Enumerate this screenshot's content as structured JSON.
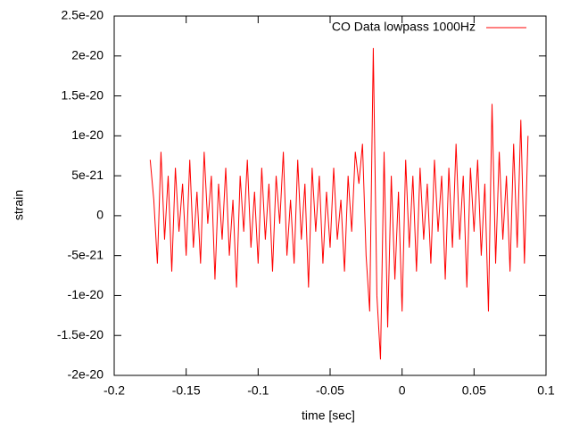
{
  "chart_data": {
    "type": "line",
    "x_label": "time [sec]",
    "y_label": "strain",
    "xlim": [
      -0.2,
      0.1
    ],
    "xticks": [
      -0.2,
      -0.15,
      -0.1,
      -0.05,
      0,
      0.05,
      0.1
    ],
    "ylim": [
      -2e-20,
      2.5e-20
    ],
    "yticks": [
      {
        "value": -2e-20,
        "label": "-2e-20"
      },
      {
        "value": -1.5e-20,
        "label": "-1.5e-20"
      },
      {
        "value": -1e-20,
        "label": "-1e-20"
      },
      {
        "value": -5e-21,
        "label": "-5e-21"
      },
      {
        "value": 0,
        "label": "0"
      },
      {
        "value": 5e-21,
        "label": "5e-21"
      },
      {
        "value": 1e-20,
        "label": "1e-20"
      },
      {
        "value": 1.5e-20,
        "label": "1.5e-20"
      },
      {
        "value": 2e-20,
        "label": "2e-20"
      },
      {
        "value": 2.5e-20,
        "label": "2.5e-20"
      }
    ],
    "legend": "top-right",
    "x": [
      -0.175,
      -0.1725,
      -0.17,
      -0.1675,
      -0.165,
      -0.1625,
      -0.16,
      -0.1575,
      -0.155,
      -0.1525,
      -0.15,
      -0.1475,
      -0.145,
      -0.1425,
      -0.14,
      -0.1375,
      -0.135,
      -0.1325,
      -0.13,
      -0.1275,
      -0.125,
      -0.1225,
      -0.12,
      -0.1175,
      -0.115,
      -0.1125,
      -0.11,
      -0.1075,
      -0.105,
      -0.1025,
      -0.1,
      -0.0975,
      -0.095,
      -0.0925,
      -0.09,
      -0.0875,
      -0.085,
      -0.0825,
      -0.08,
      -0.0775,
      -0.075,
      -0.0725,
      -0.07,
      -0.0675,
      -0.065,
      -0.0625,
      -0.06,
      -0.0575,
      -0.055,
      -0.0525,
      -0.05,
      -0.0475,
      -0.045,
      -0.0425,
      -0.04,
      -0.0375,
      -0.035,
      -0.0325,
      -0.03,
      -0.0275,
      -0.025,
      -0.0225,
      -0.02,
      -0.0175,
      -0.015,
      -0.0125,
      -0.01,
      -0.0075,
      -0.005,
      -0.0025,
      0,
      0.0025,
      0.005,
      0.0075,
      0.01,
      0.0125,
      0.015,
      0.0175,
      0.02,
      0.0225,
      0.025,
      0.0275,
      0.03,
      0.0325,
      0.035,
      0.0375,
      0.04,
      0.0425,
      0.045,
      0.0475,
      0.05,
      0.0525,
      0.055,
      0.0575,
      0.06,
      0.0625,
      0.065,
      0.0675,
      0.07,
      0.0725,
      0.075,
      0.0775,
      0.08,
      0.0825,
      0.085,
      0.0875
    ],
    "series": [
      {
        "name": "CO Data lowpass 1000Hz",
        "color": "#ff0000",
        "values": [
          7e-21,
          2e-21,
          -6e-21,
          8e-21,
          -3e-21,
          5e-21,
          -7e-21,
          6e-21,
          -2e-21,
          4e-21,
          -5e-21,
          7e-21,
          -4e-21,
          3e-21,
          -6e-21,
          8e-21,
          -1e-21,
          5e-21,
          -8e-21,
          4e-21,
          -3e-21,
          6e-21,
          -5e-21,
          2e-21,
          -9e-21,
          5e-21,
          -2e-21,
          7e-21,
          -4e-21,
          3e-21,
          -6e-21,
          6e-21,
          -3e-21,
          4e-21,
          -7e-21,
          5e-21,
          -1e-21,
          8e-21,
          -5e-21,
          2e-21,
          -6e-21,
          7e-21,
          -3e-21,
          4e-21,
          -9e-21,
          6e-21,
          -2e-21,
          5e-21,
          -6e-21,
          3e-21,
          -4e-21,
          6e-21,
          -3e-21,
          2e-21,
          -7e-21,
          5e-21,
          -2e-21,
          8e-21,
          4e-21,
          9e-21,
          -5e-21,
          -1.2e-20,
          2.1e-20,
          -1e-20,
          -1.8e-20,
          8e-21,
          -1.4e-20,
          5e-21,
          -8e-21,
          3e-21,
          -1.2e-20,
          7e-21,
          -4e-21,
          5e-21,
          -7e-21,
          6e-21,
          -3e-21,
          4e-21,
          -6e-21,
          7e-21,
          -2e-21,
          5e-21,
          -8e-21,
          6e-21,
          -4e-21,
          9e-21,
          -3e-21,
          5e-21,
          -9e-21,
          6e-21,
          -2e-21,
          7e-21,
          -5e-21,
          4e-21,
          -1.2e-20,
          1.4e-20,
          -6e-21,
          8e-21,
          -3e-21,
          5e-21,
          -7e-21,
          9e-21,
          -4e-21,
          1.2e-20,
          -6e-21,
          1e-20
        ]
      }
    ]
  }
}
